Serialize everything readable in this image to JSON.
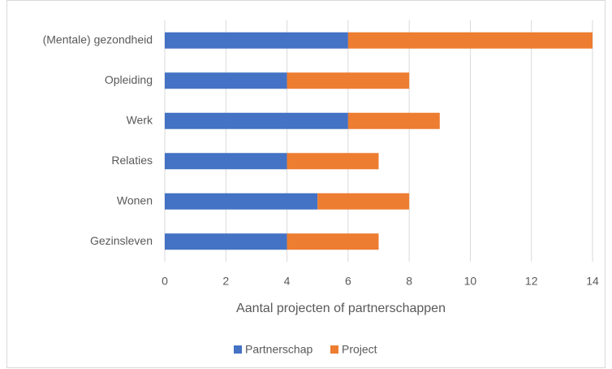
{
  "chart_data": {
    "type": "bar",
    "orientation": "horizontal",
    "stacked": true,
    "categories": [
      "(Mentale) gezondheid",
      "Opleiding",
      "Werk",
      "Relaties",
      "Wonen",
      "Gezinsleven"
    ],
    "series": [
      {
        "name": "Partnerschap",
        "color": "#4472c4",
        "values": [
          6,
          4,
          6,
          4,
          5,
          4
        ]
      },
      {
        "name": "Project",
        "color": "#ed7d31",
        "values": [
          8,
          4,
          3,
          3,
          3,
          3
        ]
      }
    ],
    "xlabel": "Aantal projecten of partnerschappen",
    "xlim": [
      0,
      14
    ],
    "xticks": [
      0,
      2,
      4,
      6,
      8,
      10,
      12,
      14
    ],
    "grid": true,
    "legend": "bottom"
  }
}
